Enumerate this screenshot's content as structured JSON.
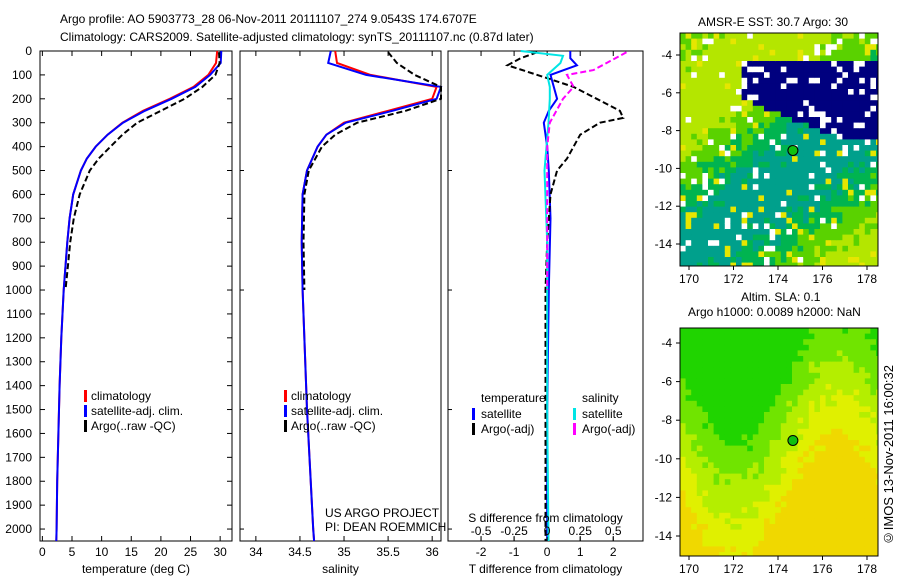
{
  "title_line1": "Argo profile: AO 5903773_28 06-Nov-2011 20111107_274 9.0543S 174.6707E",
  "title_line2": "Climatology: CARS2009. Satellite-adjusted climatology: synTS_20111107.nc (0.87d later)",
  "project_line1": "US ARGO PROJECT",
  "project_line2": "PI: DEAN ROEMMICH",
  "credit": "©IMOS 13-Nov-2011 16:00:32",
  "colors": {
    "climatology": "#ff0000",
    "satellite": "#0000ff",
    "argo": "#000000",
    "s_satellite": "#00e5e5",
    "s_argo": "#ff00ff"
  },
  "chart_data": [
    {
      "type": "line",
      "xlabel": "temperature (deg C)",
      "ylabel": "",
      "xlim": [
        -0.4,
        32
      ],
      "ylim": [
        2050,
        0
      ],
      "xticks": [
        0,
        5,
        10,
        15,
        20,
        25,
        30
      ],
      "yticks": [
        0,
        100,
        200,
        300,
        400,
        500,
        600,
        700,
        800,
        900,
        1000,
        1100,
        1200,
        1300,
        1400,
        1500,
        1600,
        1700,
        1800,
        1900,
        2000
      ],
      "legend": [
        "climatology",
        "satellite-adj. clim.",
        "Argo(..raw -QC)"
      ],
      "series": [
        {
          "name": "climatology",
          "color": "#ff0000",
          "points": [
            [
              0,
              29.5
            ],
            [
              50,
              29.3
            ],
            [
              100,
              28
            ],
            [
              150,
              25.5
            ],
            [
              200,
              21.5
            ],
            [
              250,
              17
            ],
            [
              300,
              13.5
            ],
            [
              350,
              11
            ],
            [
              400,
              9
            ],
            [
              450,
              7.5
            ],
            [
              500,
              6.5
            ],
            [
              600,
              5.2
            ],
            [
              700,
              4.6
            ],
            [
              800,
              4.2
            ],
            [
              1000,
              3.6
            ],
            [
              1200,
              3.2
            ],
            [
              1400,
              2.9
            ],
            [
              1600,
              2.7
            ],
            [
              1800,
              2.5
            ],
            [
              2000,
              2.4
            ],
            [
              2050,
              2.35
            ]
          ]
        },
        {
          "name": "satellite-adj. clim.",
          "color": "#0000ff",
          "points": [
            [
              0,
              30.2
            ],
            [
              50,
              30.1
            ],
            [
              100,
              28.3
            ],
            [
              150,
              25.8
            ],
            [
              200,
              21.8
            ],
            [
              250,
              17.3
            ],
            [
              300,
              13.6
            ],
            [
              350,
              11
            ],
            [
              400,
              9
            ],
            [
              450,
              7.5
            ],
            [
              500,
              6.5
            ],
            [
              600,
              5.2
            ],
            [
              700,
              4.6
            ],
            [
              800,
              4.2
            ],
            [
              1000,
              3.6
            ],
            [
              1200,
              3.2
            ],
            [
              1400,
              2.9
            ],
            [
              1600,
              2.7
            ],
            [
              1800,
              2.5
            ],
            [
              2000,
              2.4
            ],
            [
              2050,
              2.35
            ]
          ]
        },
        {
          "name": "Argo(..raw -QC)",
          "color": "#000000",
          "dashed": true,
          "points": [
            [
              5,
              29.8
            ],
            [
              50,
              29.9
            ],
            [
              100,
              29.2
            ],
            [
              150,
              27
            ],
            [
              200,
              24
            ],
            [
              250,
              20
            ],
            [
              300,
              16
            ],
            [
              350,
              13.5
            ],
            [
              400,
              11.5
            ],
            [
              450,
              9.5
            ],
            [
              500,
              8
            ],
            [
              600,
              6.3
            ],
            [
              700,
              5.3
            ],
            [
              800,
              4.7
            ],
            [
              900,
              4.3
            ],
            [
              1000,
              3.9
            ]
          ]
        }
      ]
    },
    {
      "type": "line",
      "xlabel": "salinity",
      "ylabel": "",
      "xlim": [
        33.82,
        36.1
      ],
      "ylim": [
        2050,
        0
      ],
      "xticks": [
        34,
        34.5,
        35,
        35.5,
        36
      ],
      "legend": [
        "climatology",
        "satellite-adj. clim.",
        "Argo(..raw -QC)"
      ],
      "series": [
        {
          "name": "climatology",
          "color": "#ff0000",
          "points": [
            [
              0,
              34.9
            ],
            [
              50,
              34.92
            ],
            [
              100,
              35.3
            ],
            [
              150,
              36.05
            ],
            [
              200,
              36.0
            ],
            [
              250,
              35.5
            ],
            [
              300,
              35.0
            ],
            [
              350,
              34.8
            ],
            [
              400,
              34.7
            ],
            [
              500,
              34.58
            ],
            [
              600,
              34.53
            ],
            [
              800,
              34.52
            ],
            [
              1000,
              34.53
            ],
            [
              1500,
              34.58
            ],
            [
              2000,
              34.65
            ],
            [
              2050,
              34.66
            ]
          ]
        },
        {
          "name": "satellite-adj. clim.",
          "color": "#0000ff",
          "points": [
            [
              0,
              34.85
            ],
            [
              50,
              34.82
            ],
            [
              100,
              35.25
            ],
            [
              150,
              36.1
            ],
            [
              200,
              36.05
            ],
            [
              250,
              35.55
            ],
            [
              300,
              35.02
            ],
            [
              350,
              34.8
            ],
            [
              400,
              34.7
            ],
            [
              500,
              34.58
            ],
            [
              600,
              34.53
            ],
            [
              800,
              34.52
            ],
            [
              1000,
              34.53
            ],
            [
              1500,
              34.58
            ],
            [
              2000,
              34.65
            ],
            [
              2050,
              34.66
            ]
          ]
        },
        {
          "name": "Argo(..raw -QC)",
          "color": "#000000",
          "dashed": true,
          "points": [
            [
              5,
              35.5
            ],
            [
              50,
              35.6
            ],
            [
              100,
              35.8
            ],
            [
              150,
              36.1
            ],
            [
              200,
              36.1
            ],
            [
              250,
              35.7
            ],
            [
              300,
              35.15
            ],
            [
              350,
              34.9
            ],
            [
              400,
              34.75
            ],
            [
              500,
              34.6
            ],
            [
              600,
              34.55
            ],
            [
              800,
              34.54
            ],
            [
              1000,
              34.55
            ]
          ]
        }
      ]
    },
    {
      "type": "line",
      "xlabel": "T difference from climatology",
      "x2label": "S difference from climatology",
      "xlim": [
        -3,
        2.9
      ],
      "ylim": [
        2050,
        0
      ],
      "xticks": [
        -2,
        -1,
        0,
        1,
        2
      ],
      "x2ticks": [
        "-0.5",
        "-0.25",
        "0",
        "0.25",
        "0.5"
      ],
      "x2values": [
        -0.5,
        -0.25,
        0,
        0.25,
        0.5
      ],
      "legend_temperature": {
        "heading": "temperature",
        "items": [
          "satellite",
          "Argo(-adj)"
        ]
      },
      "legend_salinity": {
        "heading": "salinity",
        "items": [
          "satellite",
          "Argo(-adj)"
        ]
      },
      "series": [
        {
          "name": "temperature satellite",
          "color": "#0000ff",
          "unit": "T",
          "points": [
            [
              0,
              0.7
            ],
            [
              30,
              0.7
            ],
            [
              60,
              0.9
            ],
            [
              100,
              0.1
            ],
            [
              150,
              0.2
            ],
            [
              200,
              0.3
            ],
            [
              250,
              0.05
            ],
            [
              300,
              -0.1
            ],
            [
              400,
              0
            ],
            [
              500,
              0.05
            ],
            [
              700,
              0.1
            ],
            [
              1000,
              0.05
            ],
            [
              1500,
              0
            ],
            [
              2050,
              0
            ]
          ]
        },
        {
          "name": "temperature Argo(-adj)",
          "color": "#000000",
          "unit": "T",
          "dashed": true,
          "points": [
            [
              5,
              -0.3
            ],
            [
              30,
              -0.8
            ],
            [
              60,
              -1.2
            ],
            [
              100,
              -0.3
            ],
            [
              150,
              0.8
            ],
            [
              200,
              1.5
            ],
            [
              250,
              2.2
            ],
            [
              280,
              2.3
            ],
            [
              300,
              1.6
            ],
            [
              350,
              1.0
            ],
            [
              400,
              0.8
            ],
            [
              450,
              0.6
            ],
            [
              500,
              0.3
            ],
            [
              600,
              0.1
            ],
            [
              800,
              0
            ],
            [
              1000,
              -0.05
            ],
            [
              2050,
              -0.05
            ]
          ]
        },
        {
          "name": "salinity satellite",
          "color": "#00e5e5",
          "unit": "S",
          "points": [
            [
              0,
              -0.2
            ],
            [
              20,
              0.12
            ],
            [
              50,
              0.1
            ],
            [
              100,
              0.0
            ],
            [
              150,
              0.02
            ],
            [
              200,
              0.02
            ],
            [
              300,
              0.01
            ],
            [
              500,
              -0.02
            ],
            [
              800,
              0
            ],
            [
              1000,
              0
            ],
            [
              1500,
              0
            ],
            [
              2050,
              0.01
            ]
          ]
        },
        {
          "name": "salinity Argo(-adj)",
          "color": "#ff00ff",
          "unit": "S",
          "dashed": true,
          "points": [
            [
              5,
              0.6
            ],
            [
              20,
              0.55
            ],
            [
              50,
              0.45
            ],
            [
              80,
              0.35
            ],
            [
              100,
              0.15
            ],
            [
              150,
              0.2
            ],
            [
              200,
              0.12
            ],
            [
              300,
              0.02
            ],
            [
              400,
              0
            ],
            [
              600,
              0
            ],
            [
              1000,
              0
            ]
          ]
        }
      ]
    }
  ],
  "map_top": {
    "title": "AMSR-E SST: 30.7  Argo: 30",
    "xticks": [
      "170",
      "172",
      "174",
      "176",
      "178"
    ],
    "yticks": [
      "-4",
      "-6",
      "-8",
      "-10",
      "-12",
      "-14"
    ],
    "float_lon": 174.67,
    "float_lat": -9.05
  },
  "map_bottom": {
    "title1": "Altim. SLA: 0.1",
    "title2": "Argo h1000: 0.0089 h2000: NaN",
    "xticks": [
      "170",
      "172",
      "174",
      "176",
      "178"
    ],
    "yticks": [
      "-4",
      "-6",
      "-8",
      "-10",
      "-12",
      "-14"
    ],
    "float_lon": 174.67,
    "float_lat": -9.05
  }
}
